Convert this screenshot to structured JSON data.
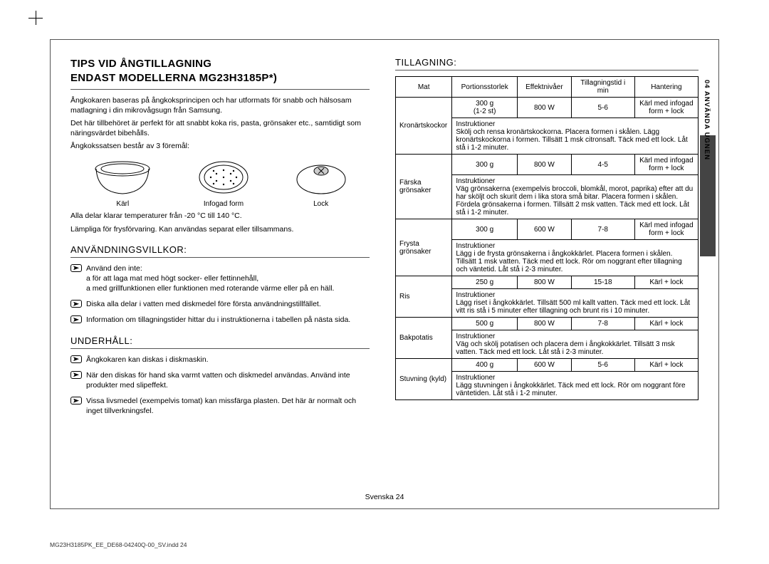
{
  "page": {
    "title_line1": "TIPS VID ÅNGTILLAGNING",
    "title_line2": "ENDAST MODELLERNA MG23H3185P*)",
    "intro1": "Ångkokaren baseras på ångkoksprincipen och har utformats för snabb och hälsosam matlagning i din mikrovågsugn från Samsung.",
    "intro2": "Det här tillbehöret är perfekt för att snabbt koka ris, pasta, grönsaker etc., samtidigt som näringsvärdet bibehålls.",
    "intro3": "Ångkokssatsen består av 3 föremål:",
    "fig_labels": {
      "bowl": "Kärl",
      "insert": "Infogad form",
      "lid": "Lock"
    },
    "temp_note1": "Alla delar klarar temperaturer från -20 °C till 140 °C.",
    "temp_note2": "Lämpliga för frysförvaring. Kan användas separat eller tillsammans.",
    "terms_heading": "ANVÄNDNINGSVILLKOR:",
    "terms": [
      "Använd den inte:\n  a för att laga mat med högt socker- eller fettinnehåll,\n  a med grillfunktionen eller funktionen med roterande värme eller på en häll.",
      "Diska alla delar i vatten med diskmedel före första användningstillfället.",
      "Information om tillagningstider hittar du i instruktionerna i tabellen på nästa sida."
    ],
    "maint_heading": "UNDERHÅLL:",
    "maint": [
      "Ångkokaren kan diskas i diskmaskin.",
      "När den diskas för hand ska varmt vatten och diskmedel användas. Använd inte produkter med slipeffekt.",
      "Vissa livsmedel (exempelvis tomat) kan missfärga plasten. Det här är normalt och inget tillverkningsfel."
    ],
    "cooking_heading": "TILLAGNING:",
    "side_label": "04  ANVÄNDA UGNEN",
    "table": {
      "headers": [
        "Mat",
        "Portionsstorlek",
        "Effektnivåer",
        "Tillagningstid i min",
        "Hantering"
      ],
      "rows": [
        {
          "food": "Kronärtskockor",
          "portion_main": "300 g",
          "portion_sub": "(1-2 st)",
          "power": "800 W",
          "time": "5-6",
          "handling": "Kärl med infogad form + lock",
          "instr": "Skölj och rensa kronärtskockorna. Placera formen i skålen. Lägg kronärtskockorna i formen. Tillsätt 1 msk citronsaft. Täck med ett lock. Låt stå i 1-2 minuter."
        },
        {
          "food": "Färska grönsaker",
          "portion_main": "300 g",
          "power": "800 W",
          "time": "4-5",
          "handling": "Kärl med infogad form + lock",
          "instr": "Väg grönsakerna (exempelvis broccoli, blomkål, morot, paprika) efter att du har sköljt och skurit dem i lika stora små bitar. Placera formen i skålen. Fördela grönsakerna i formen. Tillsätt 2 msk vatten. Täck med ett lock. Låt stå i 1-2 minuter."
        },
        {
          "food": "Frysta grönsaker",
          "portion_main": "300 g",
          "power": "600 W",
          "time": "7-8",
          "handling": "Kärl med infogad form + lock",
          "instr": "Lägg i de frysta grönsakerna i ångkokkärlet. Placera formen i skålen. Tillsätt 1 msk vatten. Täck med ett lock. Rör om noggrant efter tillagning och väntetid. Låt stå i 2-3 minuter."
        },
        {
          "food": "Ris",
          "portion_main": "250 g",
          "power": "800 W",
          "time": "15-18",
          "handling": "Kärl + lock",
          "instr": "Lägg riset i ångkokkärlet. Tillsätt 500 ml kallt vatten. Täck med ett lock. Låt vitt ris stå i 5 minuter efter tillagning och brunt ris i 10 minuter."
        },
        {
          "food": "Bakpotatis",
          "portion_main": "500 g",
          "power": "800 W",
          "time": "7-8",
          "handling": "Kärl + lock",
          "instr": "Väg och skölj potatisen och placera dem i ångkokkärlet. Tillsätt 3 msk vatten. Täck med ett lock. Låt stå i 2-3 minuter."
        },
        {
          "food": "Stuvning (kyld)",
          "portion_main": "400 g",
          "power": "600 W",
          "time": "5-6",
          "handling": "Kärl + lock",
          "instr": "Lägg stuvningen i ångkokkärlet. Täck med ett lock. Rör om noggrant före väntetiden. Låt stå i 1-2 minuter."
        }
      ],
      "instr_label": "Instruktioner"
    },
    "footer": "Svenska   24",
    "imprint": "MG23H3185PK_EE_DE68-04240Q-00_SV.indd   24"
  }
}
